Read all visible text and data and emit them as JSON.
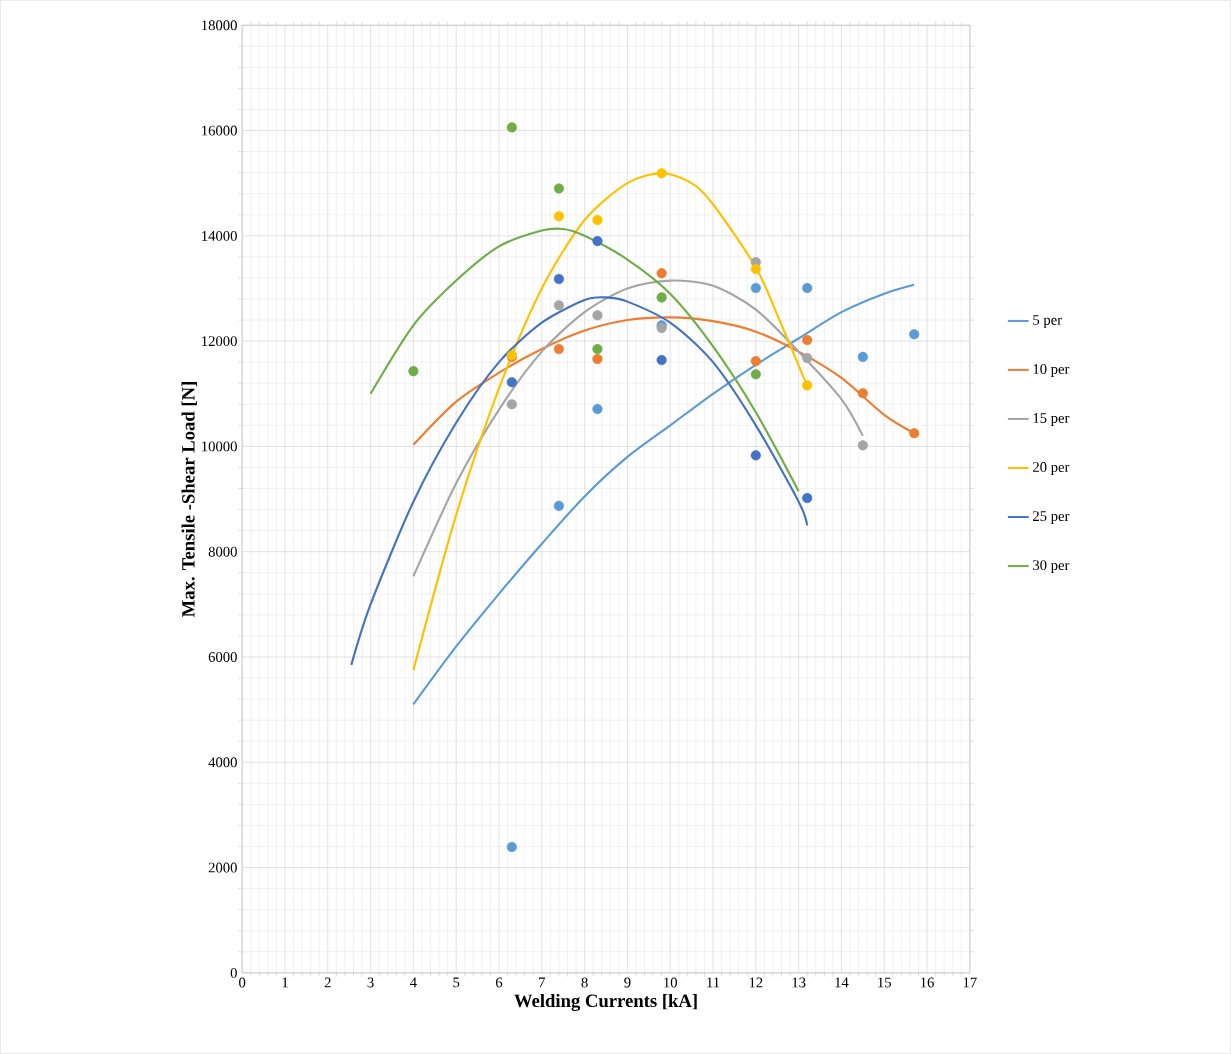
{
  "chart_data": {
    "type": "scatter",
    "xlabel": "Welding Currents [kA]",
    "ylabel": "Max. Tensile -Shear Load  [N]",
    "xlim": [
      0,
      17
    ],
    "xticks": [
      0,
      1,
      2,
      3,
      4,
      5,
      6,
      7,
      8,
      9,
      10,
      11,
      12,
      13,
      14,
      15,
      16,
      17
    ],
    "ylim": [
      0,
      18000
    ],
    "yticks": [
      0,
      2000,
      4000,
      6000,
      8000,
      10000,
      12000,
      14000,
      16000,
      18000
    ],
    "grid": true,
    "legend": "right",
    "series": [
      {
        "name": "5 per",
        "type": "line",
        "color": "#5b9bd5",
        "x": [
          4,
          5,
          6,
          7,
          8,
          9,
          10,
          11,
          12,
          13,
          14,
          15,
          15.7
        ],
        "values": [
          5100,
          6200,
          7200,
          8150,
          9050,
          9800,
          10400,
          11000,
          11550,
          12050,
          12550,
          12900,
          13070
        ]
      },
      {
        "name": "10 per",
        "type": "line",
        "color": "#ed7d31",
        "x": [
          4,
          5,
          6,
          7,
          8,
          9,
          10,
          11,
          12,
          13,
          14,
          15,
          15.7
        ],
        "values": [
          10030,
          10850,
          11400,
          11850,
          12200,
          12400,
          12450,
          12380,
          12180,
          11800,
          11300,
          10600,
          10250
        ]
      },
      {
        "name": "15 per",
        "type": "line",
        "color": "#a5a5a5",
        "x": [
          4,
          5,
          6,
          7,
          8,
          9,
          10,
          11,
          12,
          13,
          14,
          14.5
        ],
        "values": [
          7530,
          9300,
          10700,
          11800,
          12550,
          13000,
          13150,
          13050,
          12600,
          11800,
          10900,
          10200
        ]
      },
      {
        "name": "20 per",
        "type": "line",
        "color": "#ffc000",
        "x": [
          4,
          5,
          6,
          7,
          8,
          9,
          9.8,
          10.5,
          11,
          12,
          12.5,
          13.2
        ],
        "values": [
          5750,
          8700,
          11100,
          13000,
          14300,
          15000,
          15190,
          15000,
          14600,
          13400,
          12500,
          11150
        ]
      },
      {
        "name": "25 per",
        "type": "line",
        "color": "#4472c4",
        "x": [
          2.55,
          3,
          4,
          5,
          6,
          7,
          8,
          8.5,
          9,
          10,
          11,
          12,
          13,
          13.2
        ],
        "values": [
          5850,
          7000,
          8950,
          10450,
          11600,
          12350,
          12780,
          12830,
          12750,
          12350,
          11600,
          10400,
          8950,
          8500
        ]
      },
      {
        "name": "30 per",
        "type": "line",
        "color": "#70ad47",
        "x": [
          3,
          4,
          5,
          6,
          7,
          7.5,
          8,
          9,
          10,
          11,
          12,
          13
        ],
        "values": [
          11000,
          12300,
          13150,
          13800,
          14100,
          14130,
          14000,
          13550,
          12900,
          11900,
          10650,
          9150
        ]
      },
      {
        "marker": "circle",
        "color": "#5b9bd5",
        "x": [
          6.3,
          7.4,
          8.3,
          9.8,
          12,
          13.2,
          14.5,
          15.7
        ],
        "values": [
          2390,
          8870,
          10710,
          12300,
          13010,
          13010,
          11700,
          12130
        ]
      },
      {
        "marker": "circle",
        "color": "#ed7d31",
        "x": [
          6.3,
          7.4,
          8.3,
          9.8,
          12,
          13.2,
          14.5,
          15.7
        ],
        "values": [
          11700,
          11850,
          11660,
          13290,
          11620,
          12020,
          11010,
          10250
        ]
      },
      {
        "marker": "circle",
        "color": "#a5a5a5",
        "x": [
          6.3,
          7.4,
          8.3,
          9.8,
          12,
          13.2,
          14.5
        ],
        "values": [
          10800,
          12680,
          12490,
          12250,
          13500,
          11680,
          10020
        ]
      },
      {
        "marker": "circle",
        "color": "#ffc000",
        "x": [
          6.3,
          7.4,
          8.3,
          9.8,
          12,
          13.2
        ],
        "values": [
          11730,
          14370,
          14300,
          15190,
          13370,
          11160
        ]
      },
      {
        "marker": "circle",
        "color": "#4472c4",
        "x": [
          6.3,
          7.4,
          8.3,
          9.8,
          12,
          13.2
        ],
        "values": [
          11220,
          13180,
          13900,
          11640,
          9830,
          9020
        ]
      },
      {
        "marker": "circle",
        "color": "#70ad47",
        "x": [
          4,
          6.3,
          7.4,
          8.3,
          9.8,
          12
        ],
        "values": [
          11430,
          16060,
          14900,
          11850,
          12830,
          11370
        ]
      }
    ]
  }
}
